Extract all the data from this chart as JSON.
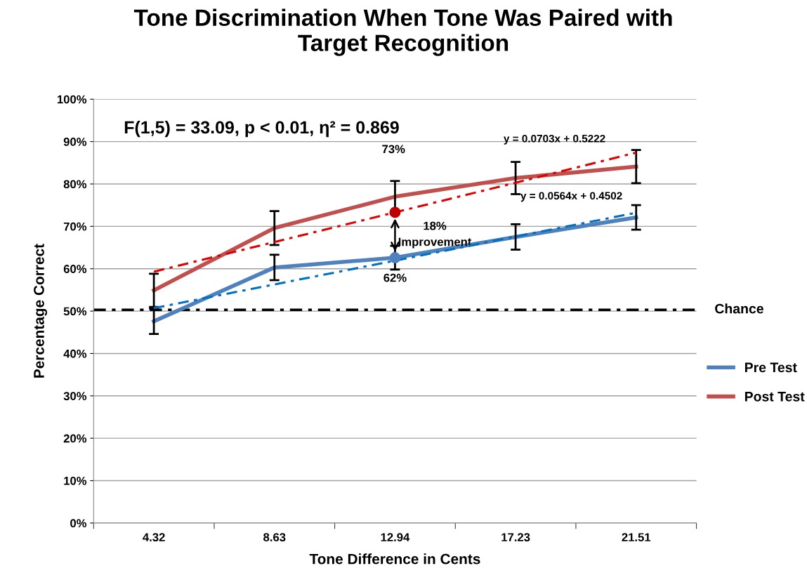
{
  "chart_data": {
    "type": "line",
    "title": "Tone Discrimination When Tone Was Paired with\nTarget Recognition",
    "xlabel": "Tone Difference in Cents",
    "ylabel": "Percentage Correct",
    "categories": [
      "4.32",
      "8.63",
      "12.94",
      "17.23",
      "21.51"
    ],
    "series": [
      {
        "name": "Pre Test",
        "color": "#4f81bd",
        "values": [
          47.6,
          60.3,
          62.6,
          67.5,
          72.1
        ],
        "errors": [
          3.0,
          3.0,
          2.8,
          3.0,
          2.9
        ]
      },
      {
        "name": "Post Test",
        "color": "#c0504d",
        "values": [
          54.9,
          69.6,
          77.0,
          81.4,
          84.1
        ],
        "errors": [
          3.9,
          4.0,
          3.7,
          3.8,
          3.9
        ]
      },
      {
        "type": "line",
        "line_style": "dashed",
        "color": "#e00000",
        "x": [
          "4.32",
          "8.63",
          "12.94",
          "17.23",
          "21.51"
        ],
        "values": [
          59.3,
          66.3,
          73.3,
          80.3,
          87.4
        ]
      },
      {
        "type": "line",
        "line_style": "dashed",
        "color": "#0070c0",
        "x": [
          "4.32",
          "8.63",
          "12.94",
          "17.23",
          "21.51"
        ],
        "values": [
          50.7,
          56.3,
          61.9,
          67.6,
          73.2
        ]
      },
      {
        "type": "scatter",
        "marker": "circle",
        "color": "#c00000",
        "x": [
          "12.94"
        ],
        "values": [
          73.3
        ]
      },
      {
        "type": "scatter",
        "marker": "circle",
        "color": "#4f81bd",
        "x": [
          "12.94"
        ],
        "values": [
          62.6
        ]
      }
    ],
    "ylim": [
      0,
      100
    ],
    "yticks": [
      {
        "value": 0,
        "label": "0%"
      },
      {
        "value": 10,
        "label": "10%"
      },
      {
        "value": 20,
        "label": "20%"
      },
      {
        "value": 30,
        "label": "30%"
      },
      {
        "value": 40,
        "label": "40%"
      },
      {
        "value": 50,
        "label": "50%"
      },
      {
        "value": 60,
        "label": "60%"
      },
      {
        "value": 70,
        "label": "70%"
      },
      {
        "value": 80,
        "label": "80%"
      },
      {
        "value": 90,
        "label": "90%"
      },
      {
        "value": 100,
        "label": "100%"
      }
    ],
    "ref_lines": [
      {
        "axis": "y",
        "value": 50.3,
        "label": "Chance",
        "color": "#000000",
        "line_style": "dashed"
      }
    ],
    "annotations": [
      "F(1,5) = 33.09, p < 0.01, η² = 0.869",
      "y = 0.0703x + 0.5222",
      "y = 0.0564x + 0.4502",
      "73%",
      {
        "text": "62%",
        "x": "12.94",
        "y": 62.6
      },
      "18%\nImprovement"
    ],
    "grid": "y",
    "legend": "right",
    "marker": "none",
    "line_style": "solid"
  }
}
